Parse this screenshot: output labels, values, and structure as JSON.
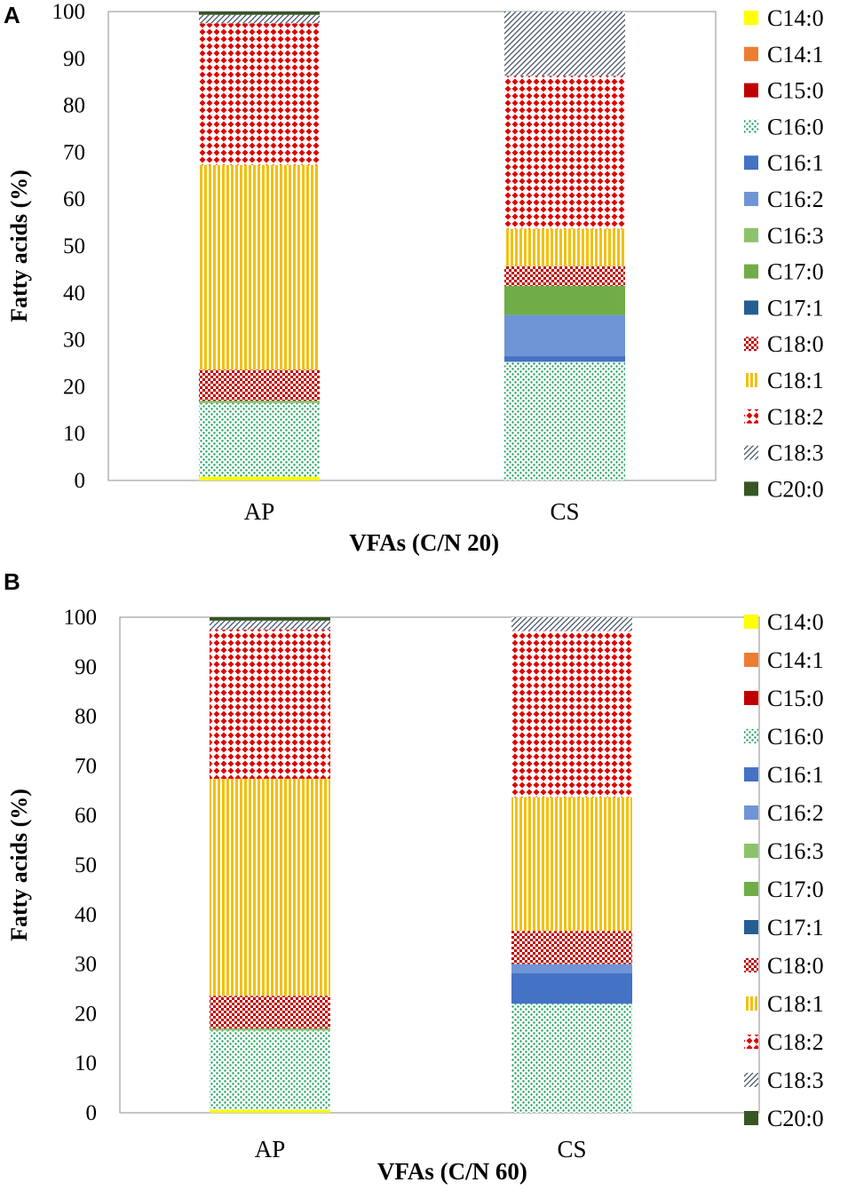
{
  "colors": {
    "C14:0": "#ffff00",
    "C14:1": "#ed7d31",
    "C15:0": "#c00000",
    "C16:0": "#1aa15a",
    "C16:1": "#4472c4",
    "C16:2": "#6f95d6",
    "C16:3": "#8cc36a",
    "C17:0": "#70ad47",
    "C17:1": "#255e91",
    "C18:0": "#c00000",
    "C18:1": "#f2c012",
    "C18:2": "#e00000",
    "C18:3": "#44546a",
    "C20:0": "#375623"
  },
  "chart_data": [
    {
      "panel": "A",
      "type": "stacked-bar",
      "title": "",
      "xlabel": "VFAs (C/N 20)",
      "ylabel": "Fatty acids (%)",
      "ylim": [
        0,
        100
      ],
      "yticks": [
        0,
        10,
        20,
        30,
        40,
        50,
        60,
        70,
        80,
        90,
        100
      ],
      "categories": [
        "AP",
        "CS"
      ],
      "legend": [
        "C14:0",
        "C14:1",
        "C15:0",
        "C16:0",
        "C16:1",
        "C16:2",
        "C16:3",
        "C17:0",
        "C17:1",
        "C18:0",
        "C18:1",
        "C18:2",
        "C18:3",
        "C20:0"
      ],
      "series": [
        {
          "name": "C14:0",
          "values": [
            0.8,
            0
          ]
        },
        {
          "name": "C14:1",
          "values": [
            0,
            0
          ]
        },
        {
          "name": "C15:0",
          "values": [
            0,
            0
          ]
        },
        {
          "name": "C16:0",
          "values": [
            15.7,
            25.3
          ]
        },
        {
          "name": "C16:1",
          "values": [
            0,
            1.2
          ]
        },
        {
          "name": "C16:2",
          "values": [
            0,
            8.8
          ]
        },
        {
          "name": "C16:3",
          "values": [
            0.3,
            0
          ]
        },
        {
          "name": "C17:0",
          "values": [
            0.2,
            6.2
          ]
        },
        {
          "name": "C17:1",
          "values": [
            0,
            0
          ]
        },
        {
          "name": "C18:0",
          "values": [
            6.6,
            4.2
          ]
        },
        {
          "name": "C18:1",
          "values": [
            43.7,
            8.0
          ]
        },
        {
          "name": "C18:2",
          "values": [
            30.2,
            32.6
          ]
        },
        {
          "name": "C18:3",
          "values": [
            1.8,
            13.7
          ]
        },
        {
          "name": "C20:0",
          "values": [
            0.7,
            0
          ]
        }
      ]
    },
    {
      "panel": "B",
      "type": "stacked-bar",
      "title": "",
      "xlabel": "VFAs (C/N 60)",
      "ylabel": "Fatty acids (%)",
      "ylim": [
        0,
        100
      ],
      "yticks": [
        0,
        10,
        20,
        30,
        40,
        50,
        60,
        70,
        80,
        90,
        100
      ],
      "categories": [
        "AP",
        "CS"
      ],
      "legend": [
        "C14:0",
        "C14:1",
        "C15:0",
        "C16:0",
        "C16:1",
        "C16:2",
        "C16:3",
        "C17:0",
        "C17:1",
        "C18:0",
        "C18:1",
        "C18:2",
        "C18:3",
        "C20:0"
      ],
      "series": [
        {
          "name": "C14:0",
          "values": [
            0.6,
            0
          ]
        },
        {
          "name": "C14:1",
          "values": [
            0,
            0
          ]
        },
        {
          "name": "C15:0",
          "values": [
            0,
            0
          ]
        },
        {
          "name": "C16:0",
          "values": [
            16.0,
            22.0
          ]
        },
        {
          "name": "C16:1",
          "values": [
            0,
            6.2
          ]
        },
        {
          "name": "C16:2",
          "values": [
            0,
            1.8
          ]
        },
        {
          "name": "C16:3",
          "values": [
            0.2,
            0
          ]
        },
        {
          "name": "C17:0",
          "values": [
            0.2,
            0
          ]
        },
        {
          "name": "C17:1",
          "values": [
            0,
            0
          ]
        },
        {
          "name": "C18:0",
          "values": [
            6.6,
            6.7
          ]
        },
        {
          "name": "C18:1",
          "values": [
            43.8,
            27.0
          ]
        },
        {
          "name": "C18:2",
          "values": [
            30.1,
            33.5
          ]
        },
        {
          "name": "C18:3",
          "values": [
            1.8,
            2.8
          ]
        },
        {
          "name": "C20:0",
          "values": [
            0.7,
            0
          ]
        }
      ]
    }
  ]
}
